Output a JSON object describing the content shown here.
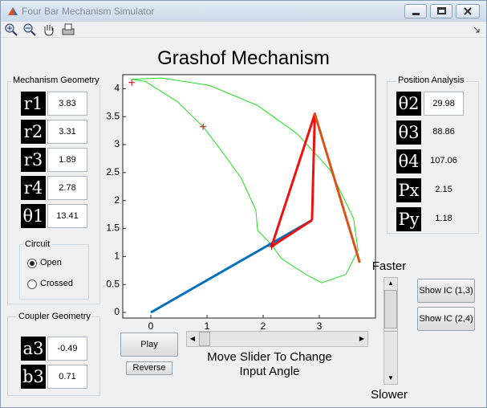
{
  "window": {
    "title": "Four Bar Mechanism Simulator"
  },
  "heading": "Grashof Mechanism",
  "geometry": {
    "title": "Mechanism Geometry",
    "rows": [
      {
        "label": "r1",
        "value": 3.83
      },
      {
        "label": "r2",
        "value": 3.31
      },
      {
        "label": "r3",
        "value": 1.89
      },
      {
        "label": "r4",
        "value": 2.78
      },
      {
        "label": "θ1",
        "value": 13.41
      }
    ]
  },
  "circuit": {
    "title": "Circuit",
    "options": [
      "Open",
      "Crossed"
    ],
    "selected": 0
  },
  "coupler": {
    "title": "Coupler Geometry",
    "rows": [
      {
        "label": "a3",
        "value": -0.49
      },
      {
        "label": "b3",
        "value": 0.71
      }
    ]
  },
  "position": {
    "title": "Position Analysis",
    "rows": [
      {
        "label": "θ2",
        "value": 29.98
      },
      {
        "label": "θ3",
        "value": 88.86
      },
      {
        "label": "θ4",
        "value": 107.06
      },
      {
        "label": "Px",
        "value": 2.15
      },
      {
        "label": "Py",
        "value": 1.18
      }
    ]
  },
  "plot": {
    "xlim": [
      -0.5,
      4
    ],
    "ylim": [
      -0.1,
      4.25
    ],
    "xticks": [
      0,
      1,
      2,
      3
    ],
    "yticks": [
      0,
      0.5,
      1,
      1.5,
      2,
      2.5,
      3,
      3.5,
      4
    ],
    "curve": {
      "color": "#22dd22",
      "x": [
        -0.34,
        0.19,
        1.04,
        1.9,
        2.61,
        3.19,
        3.61,
        3.69,
        3.47,
        3.04,
        2.76,
        2.33,
        2.14,
        1.9,
        1.87,
        1.61,
        1.19,
        0.93,
        0.47,
        -0.1,
        -0.34
      ],
      "y": [
        4.17,
        4.19,
        4.06,
        3.7,
        3.19,
        2.55,
        1.68,
        1.11,
        0.68,
        0.53,
        0.68,
        0.96,
        1.22,
        1.47,
        1.83,
        2.4,
        2.98,
        3.32,
        3.77,
        4.13,
        4.17
      ]
    },
    "links": [
      {
        "color": "#0072bd",
        "x": [
          0,
          2.87
        ],
        "y": [
          0,
          1.65
        ]
      },
      {
        "color": "#ee1111",
        "x": [
          2.87,
          2.92,
          2.15,
          2.87
        ],
        "y": [
          1.65,
          3.55,
          1.18,
          1.65
        ]
      },
      {
        "color": "#d95319",
        "x": [
          2.92,
          3.72
        ],
        "y": [
          3.55,
          0.89
        ]
      }
    ],
    "markers": {
      "color": "#cc0000",
      "x": [
        -0.34,
        0.93,
        2.15
      ],
      "y": [
        4.11,
        3.32,
        1.18
      ]
    }
  },
  "speed": {
    "top": "Faster",
    "bottom": "Slower"
  },
  "buttons": {
    "ic13": "Show IC (1,3)",
    "ic24": "Show IC (2,4)",
    "play": "Play",
    "reverse": "Reverse"
  },
  "slider_caption": "Move Slider To Change Input Angle"
}
